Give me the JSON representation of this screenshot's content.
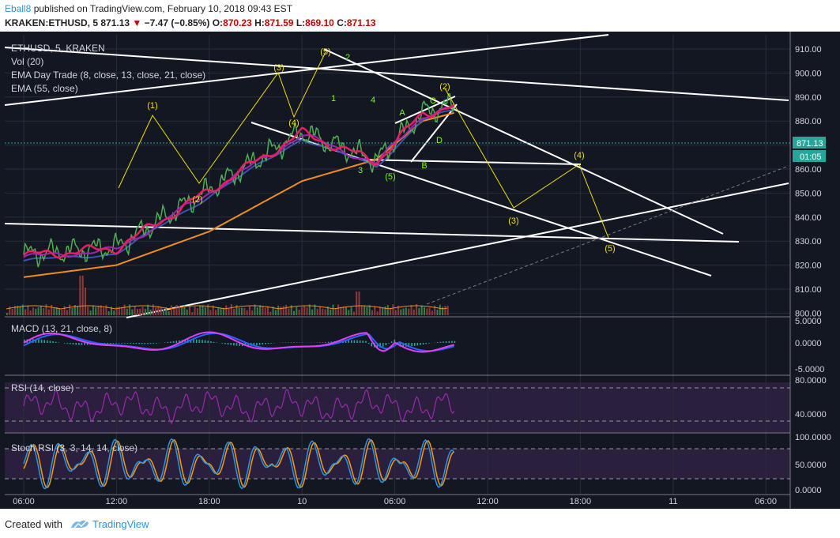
{
  "header": {
    "author": "Eball8",
    "published": "published on TradingView.com, February 10, 2018 09:43 EST",
    "symbol": "KRAKEN:ETHUSD, 5",
    "last": "871.13",
    "change_arrow": "▼",
    "change": "−7.47 (−0.85%)",
    "o_label": "O:",
    "o": "870.23",
    "h_label": "H:",
    "h": "871.59",
    "l_label": "L:",
    "l": "869.10",
    "c_label": "C:",
    "c": "871.13"
  },
  "legends": {
    "main": "ETHUSD, 5, KRAKEN",
    "vol": "Vol (20)",
    "ema_daytrade": "EMA Day Trade (8, close, 13, close, 21, close)",
    "ema55": "EMA (55, close)",
    "macd": "MACD (13, 21, close, 8)",
    "rsi": "RSI (14, close)",
    "stoch": "Stoch RSI (3, 3, 14, 14, close)"
  },
  "price_axis": {
    "ticks": [
      "910.00",
      "900.00",
      "890.00",
      "880.00",
      "870.00",
      "860.00",
      "850.00",
      "840.00",
      "830.00",
      "820.00",
      "810.00",
      "800.00"
    ],
    "current": "871.13",
    "countdown": "01:05"
  },
  "macd_axis": [
    "5.0000",
    "0.0000",
    "-5.0000"
  ],
  "rsi_axis": [
    "80.0000",
    "40.0000"
  ],
  "stoch_axis": [
    "100.0000",
    "50.0000",
    "0.0000"
  ],
  "time_axis": [
    "06:00",
    "12:00",
    "18:00",
    "10",
    "06:00",
    "12:00",
    "18:00",
    "11",
    "06:00"
  ],
  "wave_labels": {
    "y1": "(1)",
    "y2": "(2)",
    "y3": "(3)",
    "y4": "(4)",
    "y5": "(5)",
    "g1": "1",
    "g2": "2",
    "g3": "3",
    "g4": "4",
    "g5": "(5)",
    "gA": "A",
    "gB": "B",
    "gC": "C",
    "gD": "D",
    "g2b": "(2)",
    "p3": "(3)",
    "p4": "(4)",
    "p5": "(5)"
  },
  "colors": {
    "ema8": "#e91e63",
    "ema13": "#9c27b0",
    "ema21": "#3f51b5",
    "ema55": "#f08c22",
    "price": "#4caf50",
    "wave_yellow": "#f0e000",
    "wave_green": "#7cfc00",
    "macd": "#e040fb",
    "signal": "#2962ff",
    "rsi": "#9c27b0",
    "stoch_k": "#2196f3",
    "stoch_d": "#ff9800"
  },
  "footer": {
    "created": "Created with",
    "brand": "TradingView"
  },
  "chart_data": {
    "type": "line",
    "title": "ETHUSD, 5, KRAKEN",
    "ylim": [
      800,
      912
    ],
    "x": [
      "06:00",
      "12:00",
      "18:00",
      "10",
      "06:00",
      "12:00",
      "18:00",
      "11",
      "06:00"
    ],
    "series": [
      {
        "name": "EMA (55, close)",
        "points": [
          [
            0,
            815
          ],
          [
            1,
            820
          ],
          [
            2,
            834
          ],
          [
            3,
            855
          ],
          [
            3.8,
            864
          ],
          [
            4.3,
            880
          ],
          [
            5.1,
            888
          ],
          [
            5.8,
            892
          ],
          [
            6.2,
            900
          ],
          [
            6.6,
            902
          ],
          [
            7.0,
            880
          ],
          [
            7.4,
            876
          ],
          [
            7.8,
            873
          ],
          [
            8.2,
            878
          ],
          [
            8.6,
            877
          ]
        ]
      },
      {
        "name": "EMA Day Trade (8, close, 13, close, 21, close)",
        "points": [
          [
            0,
            823
          ],
          [
            1,
            826
          ],
          [
            2,
            850
          ],
          [
            3,
            874
          ],
          [
            3.8,
            862
          ],
          [
            4.3,
            882
          ],
          [
            5.1,
            890
          ],
          [
            5.8,
            897
          ],
          [
            6.2,
            905
          ],
          [
            6.6,
            901
          ],
          [
            7.0,
            868
          ],
          [
            7.4,
            872
          ],
          [
            7.8,
            866
          ],
          [
            8.2,
            880
          ],
          [
            8.6,
            876
          ]
        ]
      }
    ],
    "projection": [
      {
        "label": "(3)",
        "value": 843
      },
      {
        "label": "(4)",
        "value": 862
      },
      {
        "label": "(5)",
        "value": 831
      }
    ]
  }
}
